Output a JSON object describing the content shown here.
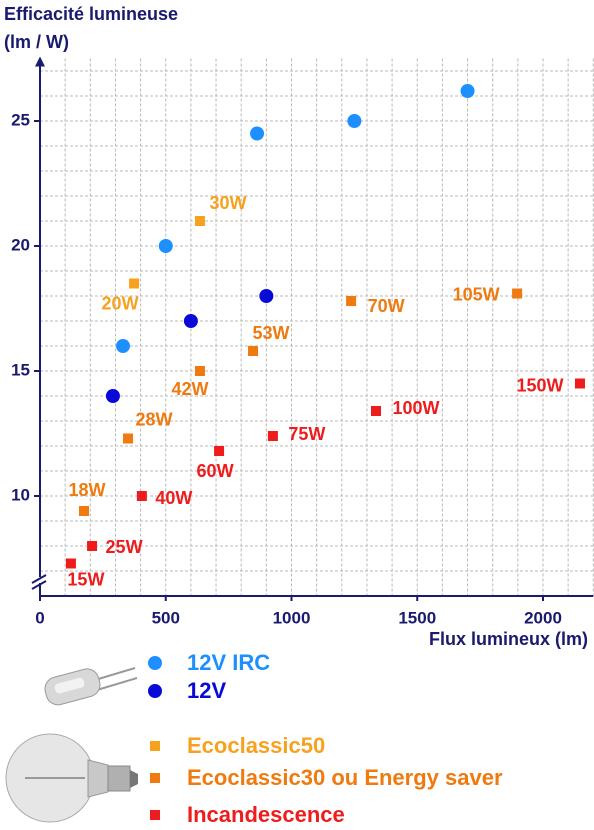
{
  "chart_data": {
    "type": "scatter",
    "ylabel_lines": [
      "Efficacité lumineuse",
      "(lm / W)"
    ],
    "xlabel": "Flux lumineux (lm)",
    "xlim": [
      0,
      2200
    ],
    "ylim": [
      6,
      27.5
    ],
    "xticks": [
      0,
      500,
      1000,
      1500,
      2000
    ],
    "yticks": [
      10,
      15,
      20,
      25
    ],
    "grid": true,
    "series": [
      {
        "name": "12V IRC",
        "color": "#1e8fff",
        "marker": "circle",
        "x": [
          330,
          500,
          863,
          1250,
          1700
        ],
        "values": [
          16,
          20,
          24.5,
          25,
          26.2
        ]
      },
      {
        "name": "12V",
        "color": "#0a0ad8",
        "marker": "circle",
        "x": [
          290,
          600,
          900
        ],
        "values": [
          14,
          17,
          18
        ]
      },
      {
        "name": "Ecoclassic50",
        "color": "#f7a21e",
        "marker": "square",
        "x": [
          374,
          636
        ],
        "values": [
          18.5,
          21
        ],
        "point_labels": [
          "20W",
          "30W"
        ]
      },
      {
        "name": "Ecoclassic30 ou Energy saver",
        "color": "#ee7a10",
        "marker": "square",
        "x": [
          175,
          350,
          636,
          847,
          1237,
          1897
        ],
        "values": [
          9.4,
          12.3,
          15,
          15.8,
          17.8,
          18.1
        ],
        "point_labels": [
          "18W",
          "28W",
          "42W",
          "53W",
          "70W",
          "105W"
        ]
      },
      {
        "name": "Incandescence",
        "color": "#ee1c1c",
        "marker": "square",
        "x": [
          123,
          207,
          405,
          712,
          926,
          1336,
          2147
        ],
        "values": [
          7.3,
          8,
          10,
          11.8,
          12.4,
          13.4,
          14.5
        ],
        "point_labels": [
          "15W",
          "25W",
          "40W",
          "60W",
          "75W",
          "100W",
          "150W"
        ]
      }
    ]
  }
}
